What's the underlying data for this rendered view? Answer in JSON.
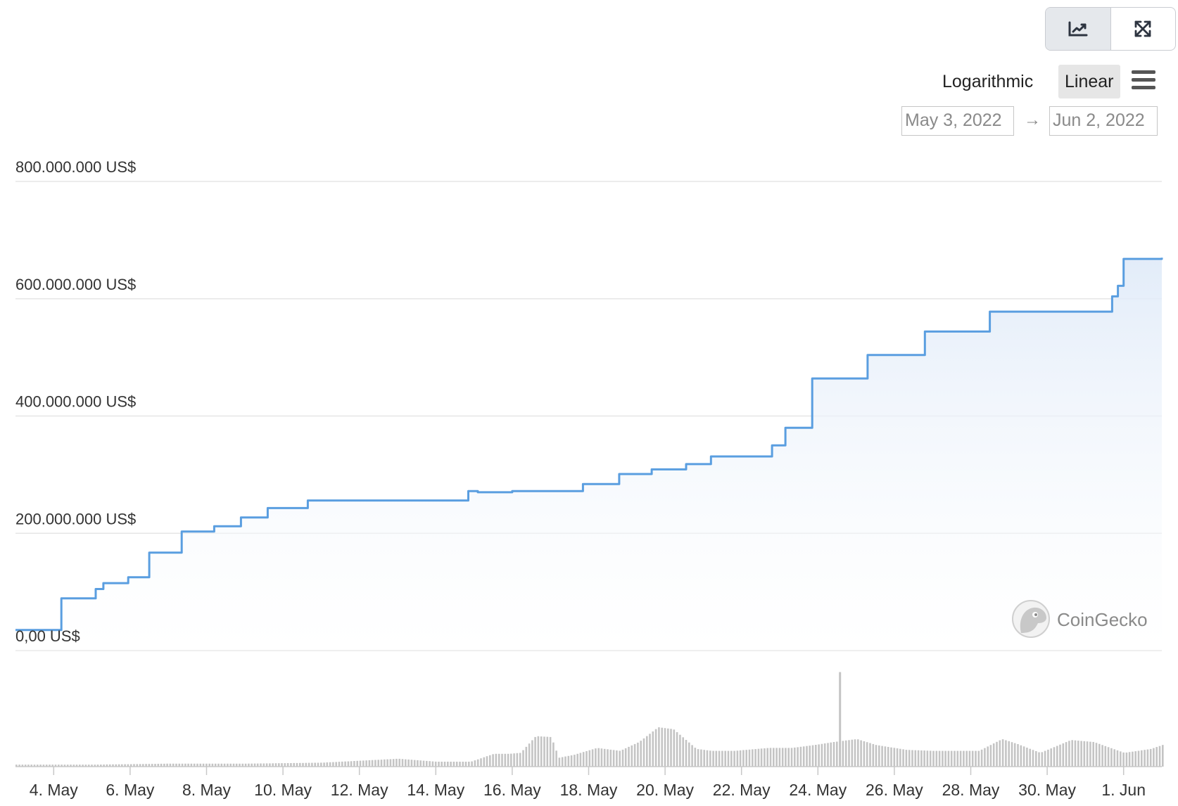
{
  "toolbar": {
    "chart_view_icon": "line-chart-icon",
    "fullscreen_icon": "expand-arrows-icon",
    "scale_log_label": "Logarithmic",
    "scale_linear_label": "Linear",
    "scale_selected": "Linear",
    "menu_icon": "hamburger-menu-icon",
    "date_from": "May 3, 2022",
    "date_arrow": "→",
    "date_to": "Jun 2, 2022"
  },
  "watermark": {
    "text": "CoinGecko",
    "icon": "gecko-logo-icon"
  },
  "colors": {
    "line": "#5a9ee0",
    "area_top": "#dfeaf8",
    "volume": "#c4c4c4",
    "grid": "#e6e6e6",
    "axis_text": "#333333"
  },
  "chart_data": {
    "type": "area",
    "title": "",
    "xlabel": "",
    "ylabel": "",
    "x_range": [
      "May 3, 2022",
      "Jun 2, 2022"
    ],
    "ylim": [
      0,
      800000000
    ],
    "y_ticks": [
      0,
      200000000,
      400000000,
      600000000,
      800000000
    ],
    "y_tick_labels": [
      "0,00 US$",
      "200.000.000 US$",
      "400.000.000 US$",
      "600.000.000 US$",
      "800.000.000 US$"
    ],
    "x_tick_labels": [
      "4. May",
      "6. May",
      "8. May",
      "10. May",
      "12. May",
      "14. May",
      "16. May",
      "18. May",
      "20. May",
      "22. May",
      "24. May",
      "26. May",
      "28. May",
      "30. May",
      "1. Jun"
    ],
    "x_tick_days": [
      1,
      3,
      5,
      7,
      9,
      11,
      13,
      15,
      17,
      19,
      21,
      23,
      25,
      27,
      29
    ],
    "grid": true,
    "legend": "none",
    "series": [
      {
        "values_days": [
          0,
          1.2,
          1.95,
          2.1,
          2.3,
          2.95,
          3.15,
          3.5,
          4.35,
          5.2,
          5.9,
          6.6,
          7.65,
          8.3,
          11.85,
          12.1,
          13.0,
          13.95,
          14.85,
          15.8,
          16.65,
          17.25,
          17.55,
          18.2,
          19.8,
          20.15,
          20.85,
          22.3,
          23.8,
          25.5,
          28.7,
          28.85,
          29.0,
          30.0
        ],
        "values": [
          35000000,
          89000000,
          89000000,
          105000000,
          115000000,
          125000000,
          125000000,
          167000000,
          203000000,
          212000000,
          227000000,
          243000000,
          256000000,
          256000000,
          272000000,
          270000000,
          272000000,
          272000000,
          284000000,
          301000000,
          309000000,
          309000000,
          318000000,
          331000000,
          350000000,
          380000000,
          464000000,
          504000000,
          544000000,
          578000000,
          604000000,
          622000000,
          668000000,
          670000000
        ]
      }
    ],
    "volume": {
      "note": "unlabeled volume bars, relative heights 0-1",
      "days": [
        0,
        2,
        4,
        6,
        8,
        10,
        11,
        11.9,
        12.5,
        12.9,
        13.2,
        13.6,
        14.0,
        14.2,
        14.6,
        15.2,
        15.8,
        16.3,
        16.8,
        17.2,
        17.8,
        18.2,
        18.8,
        19.7,
        20.3,
        20.9,
        21.4,
        22.0,
        22.5,
        23.3,
        24.0,
        24.6,
        25.2,
        25.8,
        26.2,
        26.8,
        27.6,
        28.2,
        29.0,
        29.7,
        30.0
      ],
      "values": [
        0.02,
        0.02,
        0.03,
        0.03,
        0.04,
        0.08,
        0.05,
        0.05,
        0.13,
        0.13,
        0.14,
        0.31,
        0.3,
        0.09,
        0.12,
        0.19,
        0.16,
        0.25,
        0.4,
        0.38,
        0.18,
        0.16,
        0.16,
        0.19,
        0.19,
        0.22,
        0.25,
        0.28,
        0.22,
        0.17,
        0.16,
        0.16,
        0.16,
        0.28,
        0.23,
        0.14,
        0.27,
        0.25,
        0.14,
        0.18,
        0.22
      ],
      "spike_day": 21.55,
      "spike_value": 0.64
    }
  }
}
